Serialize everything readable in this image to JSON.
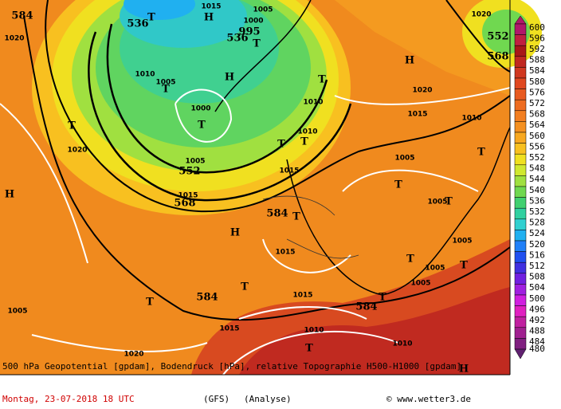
{
  "map": {
    "labels": [
      "584",
      "536",
      "T",
      "H",
      "1015",
      "1005",
      "1000",
      "536",
      "995",
      "T",
      "1020",
      "1010",
      "1005",
      "T",
      "H",
      "1000",
      "T",
      "1005",
      "552",
      "1015",
      "568",
      "T",
      "1020",
      "H",
      "584",
      "T",
      "H",
      "1015",
      "T",
      "584",
      "T",
      "1015",
      "1015",
      "1010",
      "T",
      "1005",
      "1020",
      "584",
      "T",
      "1010",
      "H",
      "1005",
      "T",
      "1005",
      "T",
      "1005",
      "1005",
      "T",
      "1005",
      "T",
      "T",
      "1010",
      "1015",
      "1020",
      "H",
      "1010",
      "T",
      "1010",
      "T",
      "T",
      "1015",
      "552",
      "568",
      "1020"
    ]
  },
  "colorbar": {
    "levels": [
      600,
      596,
      592,
      588,
      584,
      580,
      576,
      572,
      568,
      564,
      560,
      556,
      552,
      548,
      544,
      540,
      536,
      532,
      528,
      524,
      520,
      516,
      512,
      508,
      504,
      500,
      496,
      492,
      488,
      484,
      480
    ],
    "colors": [
      "#b0186a",
      "#c02040",
      "#a81818",
      "#c02820",
      "#d03820",
      "#e04820",
      "#e85a20",
      "#ee6c20",
      "#f27e20",
      "#f49020",
      "#f8a820",
      "#f8c020",
      "#f0e020",
      "#d0e830",
      "#a0e040",
      "#70d850",
      "#40d070",
      "#30d0a0",
      "#30d0d0",
      "#20b0f0",
      "#2080f8",
      "#2050f0",
      "#4030e0",
      "#7020e0",
      "#a020e0",
      "#d020e0",
      "#e020c0",
      "#c020a0",
      "#a02090",
      "#802080",
      "#602070"
    ]
  },
  "footer": {
    "line1": "500 hPa Geopotential [gpdam], Bodendruck [hPa], relative Topographie H500-H1000 [gpdam]",
    "date": "Montag, 23-07-2018  18 UTC",
    "model": "(GFS)",
    "run": "(Analyse)",
    "credit": "© www.wetter3.de"
  }
}
